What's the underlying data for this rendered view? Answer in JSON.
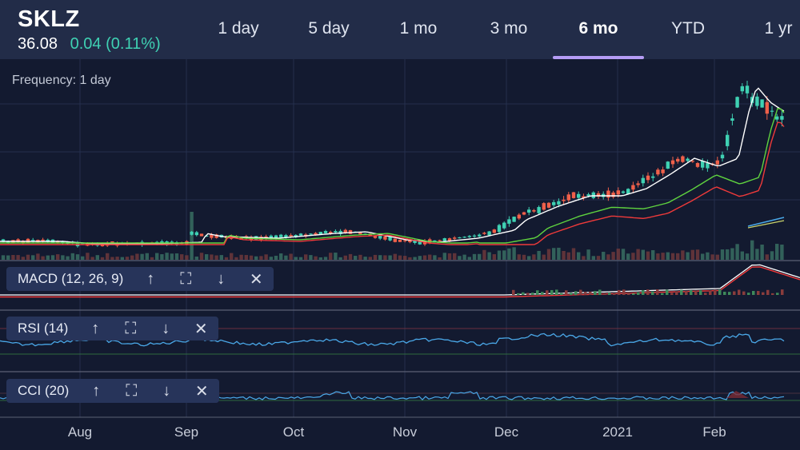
{
  "header": {
    "ticker": "SKLZ",
    "price": "36.08",
    "change": "0.04 (0.11%)"
  },
  "tabs": [
    {
      "label": "1 day",
      "active": false
    },
    {
      "label": "5 day",
      "active": false
    },
    {
      "label": "1 mo",
      "active": false
    },
    {
      "label": "3 mo",
      "active": false
    },
    {
      "label": "6 mo",
      "active": true
    },
    {
      "label": "YTD",
      "active": false
    },
    {
      "label": "1 yr",
      "active": false
    }
  ],
  "chart": {
    "frequency_label": "Frequency: 1 day",
    "months": [
      "Aug",
      "Sep",
      "Oct",
      "Nov",
      "Dec",
      "2021",
      "Feb"
    ]
  },
  "indicators": {
    "macd": {
      "label": "MACD (12, 26, 9)"
    },
    "rsi": {
      "label": "RSI (14)"
    },
    "cci": {
      "label": "CCI (20)"
    }
  },
  "icons": {
    "up": "↑",
    "expand": "⛶",
    "down": "↓",
    "close": "✕"
  },
  "colors": {
    "background": "#131a30",
    "header": "#222c48",
    "up_candle": "#3fd1b3",
    "down_candle": "#f0604a",
    "accent": "#b59cf5",
    "ma_white": "#ffffff",
    "ma_green": "#5fd33f",
    "ma_red": "#ef3a3a",
    "rsi_line": "#4aa8e8"
  }
}
